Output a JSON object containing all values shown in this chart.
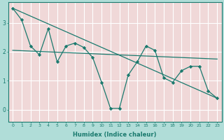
{
  "xlabel": "Humidex (Indice chaleur)",
  "ylabel": "",
  "fig_bg_color": "#b0ddd8",
  "plot_bg_color": "#f0d8d8",
  "grid_color": "#ffffff",
  "line_color": "#1a7a6e",
  "marker_color": "#1a7a6e",
  "xlim": [
    -0.5,
    23.5
  ],
  "ylim": [
    -0.4,
    3.7
  ],
  "yticks": [
    0,
    1,
    2,
    3
  ],
  "xticks": [
    0,
    1,
    2,
    3,
    4,
    5,
    6,
    7,
    8,
    9,
    10,
    11,
    12,
    13,
    14,
    15,
    16,
    17,
    18,
    19,
    20,
    21,
    22,
    23
  ],
  "series1_x": [
    0,
    1,
    2,
    3,
    4,
    5,
    6,
    7,
    8,
    9,
    10,
    11,
    12,
    13,
    14,
    15,
    16,
    17,
    18,
    19,
    20,
    21,
    22,
    23
  ],
  "series1_y": [
    3.5,
    3.1,
    2.2,
    1.9,
    2.8,
    1.65,
    2.2,
    2.3,
    2.15,
    1.8,
    0.95,
    0.05,
    0.05,
    1.2,
    1.65,
    2.2,
    2.05,
    1.1,
    0.95,
    1.35,
    1.5,
    1.5,
    0.65,
    0.4
  ],
  "trend_x": [
    0,
    23
  ],
  "trend_y": [
    3.5,
    0.4
  ],
  "mean_line_x": [
    0,
    23
  ],
  "mean_line_y": [
    2.05,
    1.75
  ]
}
